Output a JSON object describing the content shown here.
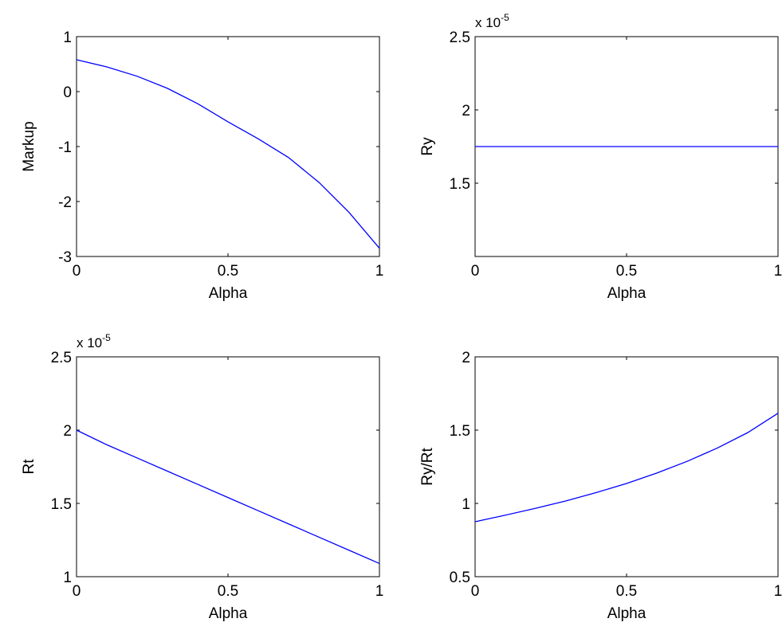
{
  "chart_data": [
    {
      "type": "line",
      "xlabel": "Alpha",
      "ylabel": "Markup",
      "color": "#0000ff",
      "x": [
        0,
        0.1,
        0.2,
        0.3,
        0.4,
        0.5,
        0.6,
        0.7,
        0.8,
        0.9,
        1
      ],
      "values": [
        0.58,
        0.45,
        0.28,
        0.06,
        -0.22,
        -0.55,
        -0.86,
        -1.2,
        -1.65,
        -2.2,
        -2.85
      ],
      "xlim": [
        0,
        1
      ],
      "xticks": [
        0,
        0.5,
        1
      ],
      "ylim": [
        -3,
        1
      ],
      "yticks": [
        -3,
        -2,
        -1,
        0,
        1
      ]
    },
    {
      "type": "line",
      "xlabel": "Alpha",
      "ylabel": "Ry",
      "color": "#0000ff",
      "y_scale_label": "x 10",
      "y_scale_exponent": "-5",
      "x": [
        0,
        0.1,
        0.2,
        0.3,
        0.4,
        0.5,
        0.6,
        0.7,
        0.8,
        0.9,
        1
      ],
      "values": [
        1.75,
        1.75,
        1.75,
        1.75,
        1.75,
        1.75,
        1.75,
        1.75,
        1.75,
        1.75,
        1.75
      ],
      "xlim": [
        0,
        1
      ],
      "xticks": [
        0,
        0.5,
        1
      ],
      "ylim": [
        1,
        2.5
      ],
      "yticks": [
        1.5,
        2,
        2.5
      ]
    },
    {
      "type": "line",
      "xlabel": "Alpha",
      "ylabel": "Rt",
      "color": "#0000ff",
      "y_scale_label": "x 10",
      "y_scale_exponent": "-5",
      "x": [
        0,
        0.1,
        0.2,
        0.3,
        0.4,
        0.5,
        0.6,
        0.7,
        0.8,
        0.9,
        1
      ],
      "values": [
        2.0,
        1.9,
        1.81,
        1.72,
        1.63,
        1.54,
        1.45,
        1.36,
        1.27,
        1.18,
        1.09
      ],
      "xlim": [
        0,
        1
      ],
      "xticks": [
        0,
        0.5,
        1
      ],
      "ylim": [
        1,
        2.5
      ],
      "yticks": [
        1,
        1.5,
        2,
        2.5
      ]
    },
    {
      "type": "line",
      "xlabel": "Alpha",
      "ylabel": "Ry/Rt",
      "color": "#0000ff",
      "x": [
        0,
        0.1,
        0.2,
        0.3,
        0.4,
        0.5,
        0.6,
        0.7,
        0.8,
        0.9,
        1
      ],
      "values": [
        0.875,
        0.92,
        0.967,
        1.017,
        1.074,
        1.136,
        1.207,
        1.287,
        1.378,
        1.483,
        1.615
      ],
      "xlim": [
        0,
        1
      ],
      "xticks": [
        0,
        0.5,
        1
      ],
      "ylim": [
        0.5,
        2
      ],
      "yticks": [
        0.5,
        1,
        1.5,
        2
      ]
    }
  ]
}
